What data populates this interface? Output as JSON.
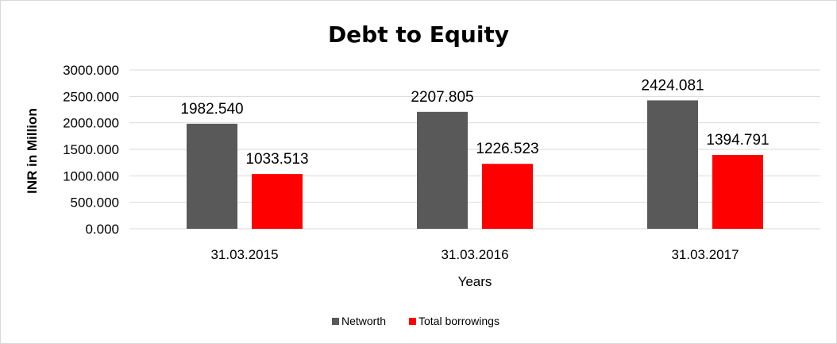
{
  "chart_data": {
    "type": "bar",
    "title": "Debt to Equity",
    "xlabel": "Years",
    "ylabel": "INR in Million",
    "categories": [
      "31.03.2015",
      "31.03.2016",
      "31.03.2017"
    ],
    "series": [
      {
        "name": "Networth",
        "values": [
          1982.54,
          2207.805,
          2424.081
        ],
        "labels": [
          "1982.540",
          "2207.805",
          "2424.081"
        ],
        "color": "#595959"
      },
      {
        "name": "Total borrowings",
        "values": [
          1033.513,
          1226.523,
          1394.791
        ],
        "labels": [
          "1033.513",
          "1226.523",
          "1394.791"
        ],
        "color": "#ff0000"
      }
    ],
    "ylim": [
      0,
      3000
    ],
    "yticks": [
      "0.000",
      "500.000",
      "1000.000",
      "1500.000",
      "2000.000",
      "2500.000",
      "3000.000"
    ],
    "ytick_values": [
      0,
      500,
      1000,
      1500,
      2000,
      2500,
      3000
    ],
    "grid": true,
    "legend_position": "bottom"
  }
}
